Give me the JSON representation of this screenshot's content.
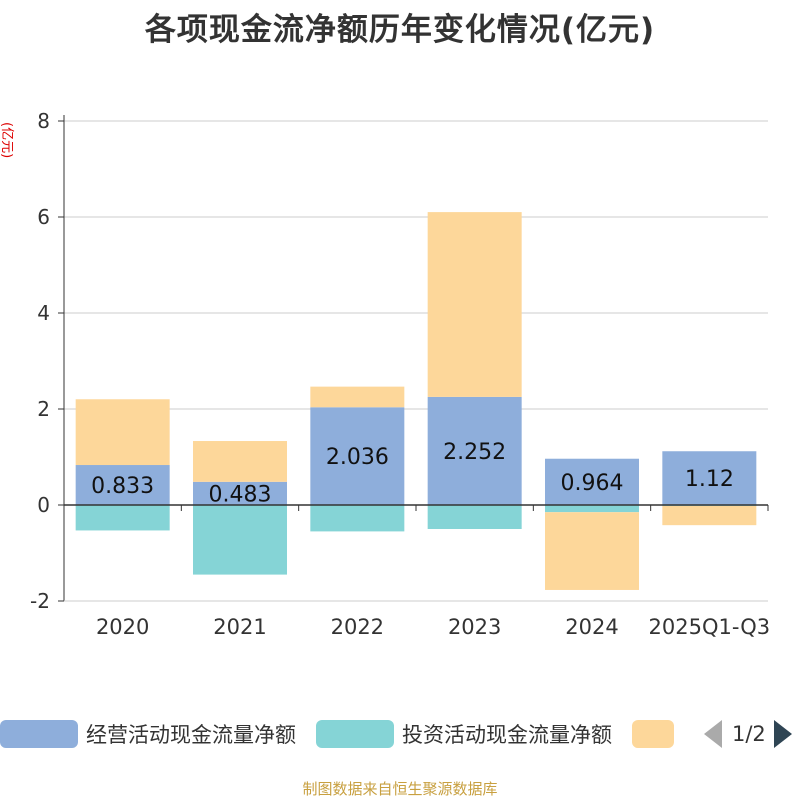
{
  "title": "各项现金流净额历年变化情况(亿元)",
  "source": "制图数据来自恒生聚源数据库",
  "chart_data": {
    "type": "bar",
    "stacked": true,
    "title": "各项现金流净额历年变化情况(亿元)",
    "ylabel": "(亿元)",
    "ylim": [
      -2,
      8
    ],
    "yticks": [
      -2,
      0,
      2,
      4,
      6,
      8
    ],
    "grid": true,
    "categories": [
      "2020",
      "2021",
      "2022",
      "2023",
      "2024",
      "2025Q1-Q3"
    ],
    "series": [
      {
        "name": "经营活动现金流量净额",
        "color": "#8eaedb",
        "values": [
          0.833,
          0.483,
          2.036,
          2.252,
          0.964,
          1.12
        ],
        "labels": [
          "0.833",
          "0.483",
          "2.036",
          "2.252",
          "0.964",
          "1.12"
        ]
      },
      {
        "name": "投资活动现金流量净额",
        "color": "#85d4d6",
        "values": [
          -0.53,
          -1.45,
          -0.55,
          -0.5,
          -0.15,
          -0.02
        ]
      },
      {
        "name": "",
        "color": "#fdd79a",
        "values": [
          1.37,
          0.85,
          0.43,
          3.85,
          -1.62,
          -0.4
        ]
      }
    ]
  },
  "legend": {
    "items": [
      {
        "label": "经营活动现金流量净额",
        "color": "#8eaedb"
      },
      {
        "label": "投资活动现金流量净额",
        "color": "#85d4d6"
      },
      {
        "label": "",
        "color": "#fdd79a"
      }
    ],
    "page": "1/2"
  }
}
